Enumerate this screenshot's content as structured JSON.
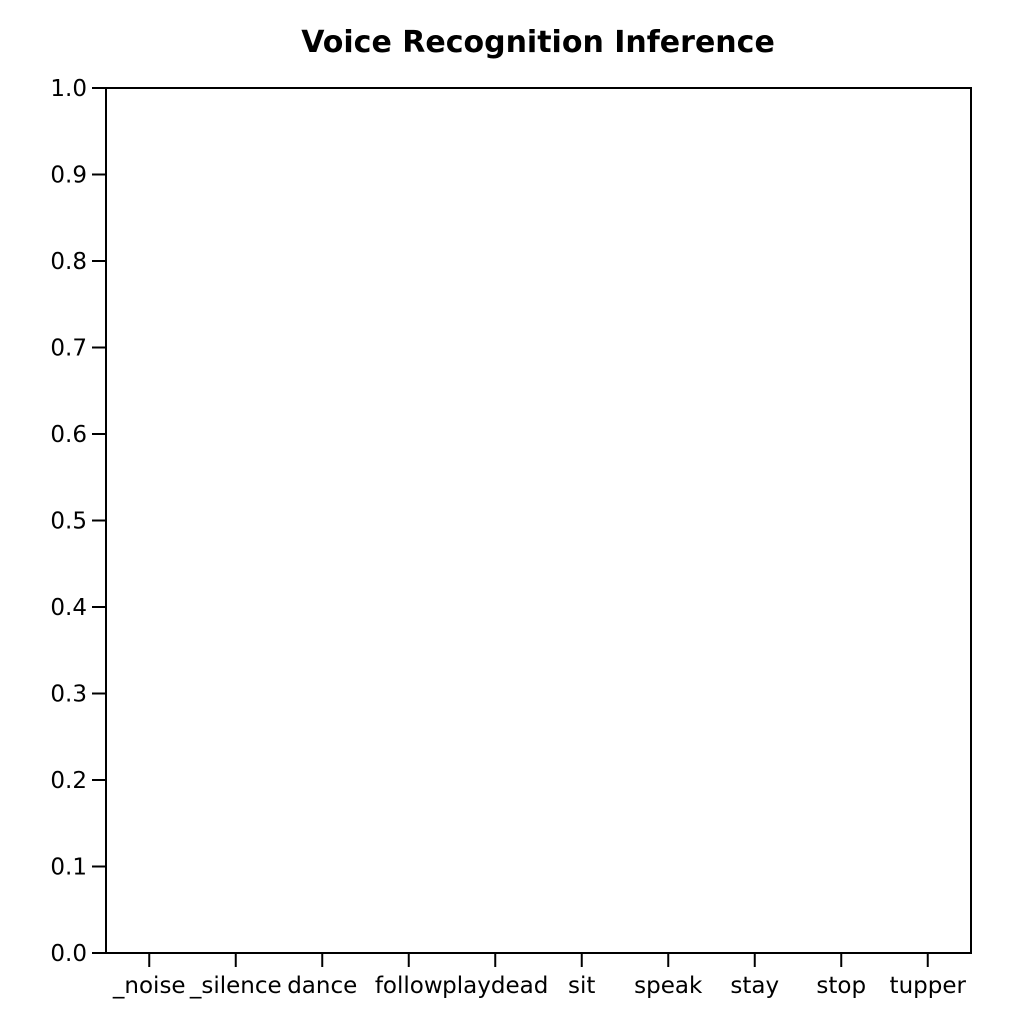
{
  "chart_data": {
    "type": "bar",
    "title": "Voice Recognition Inference",
    "xlabel": "",
    "ylabel": "",
    "categories": [
      "_noise",
      "_silence",
      "dance",
      "follow",
      "playdead",
      "sit",
      "speak",
      "stay",
      "stop",
      "tupper"
    ],
    "values": [
      0,
      0,
      0,
      0,
      0,
      0,
      0,
      0,
      0,
      0
    ],
    "ylim": [
      0.0,
      1.0
    ],
    "yticks": [
      "0.0",
      "0.1",
      "0.2",
      "0.3",
      "0.4",
      "0.5",
      "0.6",
      "0.7",
      "0.8",
      "0.9",
      "1.0"
    ],
    "grid": false,
    "bar_color": "#1f77b4"
  }
}
